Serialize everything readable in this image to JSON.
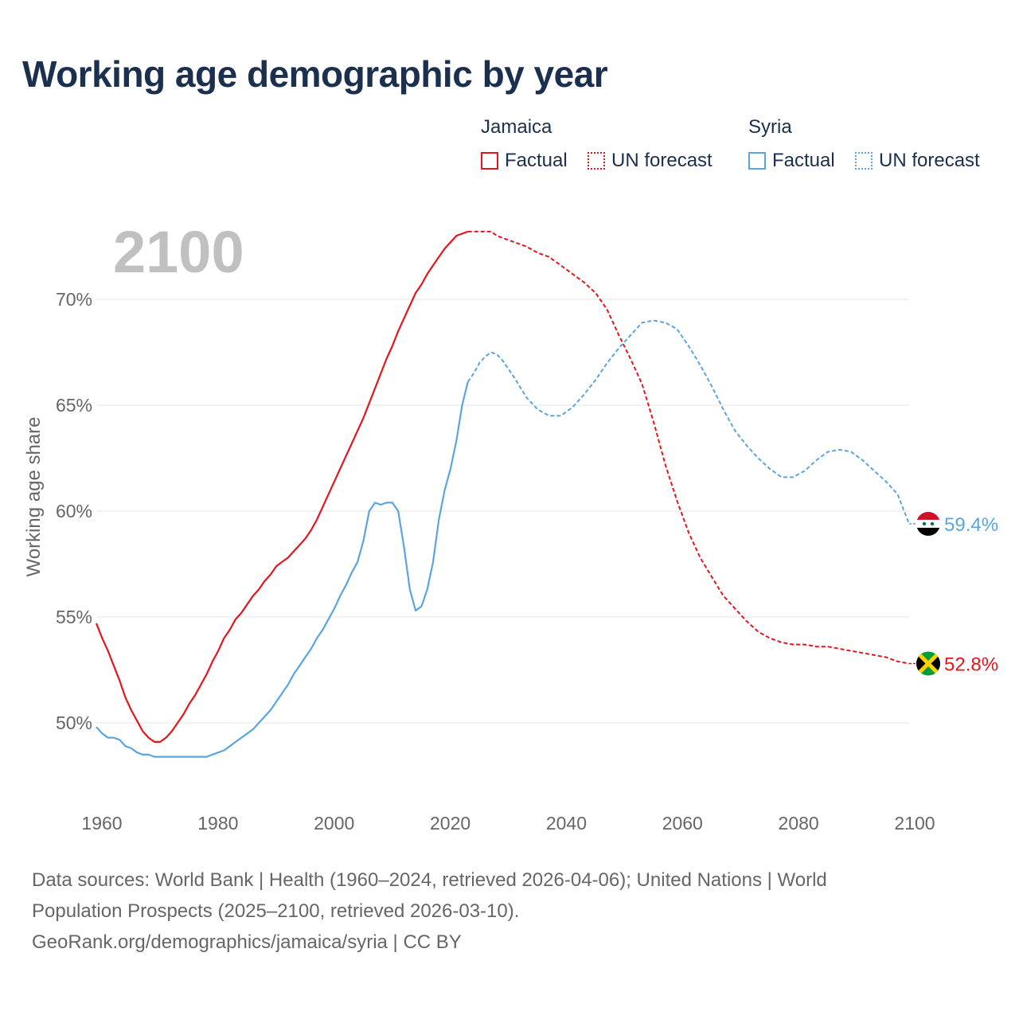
{
  "title": "Working age demographic by year",
  "legend": {
    "groups": [
      {
        "country": "Jamaica",
        "factual": "Factual",
        "forecast": "UN forecast",
        "color": "#e3161d"
      },
      {
        "country": "Syria",
        "factual": "Factual",
        "forecast": "UN forecast",
        "color": "#5aa5e0"
      }
    ]
  },
  "footer": {
    "line1": "Data sources: World Bank | Health (1960–2024, retrieved 2026-04-06); United Nations | World",
    "line2": "Population Prospects (2025–2100, retrieved 2026-03-10).",
    "line3": "GeoRank.org/demographics/jamaica/syria | CC BY"
  },
  "chart_data": {
    "type": "line",
    "title": "Working age demographic by year",
    "year_label": "2100",
    "ylabel": "Working age share",
    "xlabel": "",
    "xlim": [
      1960,
      2100
    ],
    "ylim": [
      46.5,
      73.5
    ],
    "grid": true,
    "x_ticks": [
      1960,
      1980,
      2000,
      2020,
      2040,
      2060,
      2080,
      2100
    ],
    "x_tick_labels": [
      "1960",
      "1980",
      "2000",
      "2020",
      "2040",
      "2060",
      "2080",
      "2100"
    ],
    "y_ticks": [
      50,
      55,
      60,
      65,
      70
    ],
    "y_tick_labels": [
      "50%",
      "55%",
      "60%",
      "65%",
      "70%"
    ],
    "forecast_start": 2024,
    "series": [
      {
        "name": "Jamaica",
        "color": "#e3161d",
        "end_label": "52.8%",
        "points": [
          [
            1960,
            54.7
          ],
          [
            1961,
            54.0
          ],
          [
            1962,
            53.4
          ],
          [
            1963,
            52.7
          ],
          [
            1964,
            52.0
          ],
          [
            1965,
            51.2
          ],
          [
            1966,
            50.6
          ],
          [
            1967,
            50.1
          ],
          [
            1968,
            49.6
          ],
          [
            1969,
            49.3
          ],
          [
            1970,
            49.1
          ],
          [
            1971,
            49.1
          ],
          [
            1972,
            49.3
          ],
          [
            1973,
            49.6
          ],
          [
            1974,
            50.0
          ],
          [
            1975,
            50.4
          ],
          [
            1976,
            50.9
          ],
          [
            1977,
            51.3
          ],
          [
            1978,
            51.8
          ],
          [
            1979,
            52.3
          ],
          [
            1980,
            52.9
          ],
          [
            1981,
            53.4
          ],
          [
            1982,
            54.0
          ],
          [
            1983,
            54.4
          ],
          [
            1984,
            54.9
          ],
          [
            1985,
            55.2
          ],
          [
            1986,
            55.6
          ],
          [
            1987,
            56.0
          ],
          [
            1988,
            56.3
          ],
          [
            1989,
            56.7
          ],
          [
            1990,
            57.0
          ],
          [
            1991,
            57.4
          ],
          [
            1992,
            57.6
          ],
          [
            1993,
            57.8
          ],
          [
            1994,
            58.1
          ],
          [
            1995,
            58.4
          ],
          [
            1996,
            58.7
          ],
          [
            1997,
            59.1
          ],
          [
            1998,
            59.6
          ],
          [
            1999,
            60.2
          ],
          [
            2000,
            60.8
          ],
          [
            2001,
            61.4
          ],
          [
            2002,
            62.0
          ],
          [
            2003,
            62.6
          ],
          [
            2004,
            63.2
          ],
          [
            2005,
            63.8
          ],
          [
            2006,
            64.4
          ],
          [
            2007,
            65.1
          ],
          [
            2008,
            65.8
          ],
          [
            2009,
            66.5
          ],
          [
            2010,
            67.2
          ],
          [
            2011,
            67.8
          ],
          [
            2012,
            68.5
          ],
          [
            2013,
            69.1
          ],
          [
            2014,
            69.7
          ],
          [
            2015,
            70.3
          ],
          [
            2016,
            70.7
          ],
          [
            2017,
            71.2
          ],
          [
            2018,
            71.6
          ],
          [
            2019,
            72.0
          ],
          [
            2020,
            72.4
          ],
          [
            2021,
            72.7
          ],
          [
            2022,
            73.0
          ],
          [
            2023,
            73.1
          ],
          [
            2024,
            73.2
          ],
          [
            2025,
            73.2
          ],
          [
            2026,
            73.2
          ],
          [
            2027,
            73.2
          ],
          [
            2028,
            73.2
          ],
          [
            2029,
            73.0
          ],
          [
            2030,
            72.9
          ],
          [
            2032,
            72.7
          ],
          [
            2034,
            72.5
          ],
          [
            2036,
            72.2
          ],
          [
            2038,
            72.0
          ],
          [
            2040,
            71.6
          ],
          [
            2042,
            71.2
          ],
          [
            2044,
            70.8
          ],
          [
            2046,
            70.3
          ],
          [
            2048,
            69.5
          ],
          [
            2050,
            68.3
          ],
          [
            2052,
            67.2
          ],
          [
            2054,
            66.0
          ],
          [
            2056,
            64.2
          ],
          [
            2058,
            62.2
          ],
          [
            2060,
            60.5
          ],
          [
            2062,
            59.0
          ],
          [
            2064,
            57.8
          ],
          [
            2066,
            56.9
          ],
          [
            2068,
            56.0
          ],
          [
            2070,
            55.4
          ],
          [
            2072,
            54.8
          ],
          [
            2074,
            54.3
          ],
          [
            2076,
            54.0
          ],
          [
            2078,
            53.8
          ],
          [
            2080,
            53.7
          ],
          [
            2082,
            53.7
          ],
          [
            2084,
            53.6
          ],
          [
            2086,
            53.6
          ],
          [
            2088,
            53.5
          ],
          [
            2090,
            53.4
          ],
          [
            2092,
            53.3
          ],
          [
            2094,
            53.2
          ],
          [
            2096,
            53.1
          ],
          [
            2098,
            52.9
          ],
          [
            2100,
            52.8
          ]
        ]
      },
      {
        "name": "Syria",
        "color": "#5aa5e0",
        "end_label": "59.4%",
        "points": [
          [
            1960,
            49.8
          ],
          [
            1961,
            49.5
          ],
          [
            1962,
            49.3
          ],
          [
            1963,
            49.3
          ],
          [
            1964,
            49.2
          ],
          [
            1965,
            48.9
          ],
          [
            1966,
            48.8
          ],
          [
            1967,
            48.6
          ],
          [
            1968,
            48.5
          ],
          [
            1969,
            48.5
          ],
          [
            1970,
            48.4
          ],
          [
            1972,
            48.4
          ],
          [
            1975,
            48.4
          ],
          [
            1978,
            48.4
          ],
          [
            1979,
            48.4
          ],
          [
            1980,
            48.5
          ],
          [
            1981,
            48.6
          ],
          [
            1982,
            48.7
          ],
          [
            1983,
            48.9
          ],
          [
            1984,
            49.1
          ],
          [
            1985,
            49.3
          ],
          [
            1986,
            49.5
          ],
          [
            1987,
            49.7
          ],
          [
            1988,
            50.0
          ],
          [
            1989,
            50.3
          ],
          [
            1990,
            50.6
          ],
          [
            1991,
            51.0
          ],
          [
            1992,
            51.4
          ],
          [
            1993,
            51.8
          ],
          [
            1994,
            52.3
          ],
          [
            1995,
            52.7
          ],
          [
            1996,
            53.1
          ],
          [
            1997,
            53.5
          ],
          [
            1998,
            54.0
          ],
          [
            1999,
            54.4
          ],
          [
            2000,
            54.9
          ],
          [
            2001,
            55.4
          ],
          [
            2002,
            56.0
          ],
          [
            2003,
            56.5
          ],
          [
            2004,
            57.1
          ],
          [
            2005,
            57.6
          ],
          [
            2006,
            58.6
          ],
          [
            2007,
            60.0
          ],
          [
            2008,
            60.4
          ],
          [
            2009,
            60.3
          ],
          [
            2010,
            60.4
          ],
          [
            2011,
            60.4
          ],
          [
            2012,
            60.0
          ],
          [
            2013,
            58.3
          ],
          [
            2014,
            56.3
          ],
          [
            2015,
            55.3
          ],
          [
            2016,
            55.5
          ],
          [
            2017,
            56.3
          ],
          [
            2018,
            57.6
          ],
          [
            2019,
            59.6
          ],
          [
            2020,
            61.0
          ],
          [
            2021,
            62.0
          ],
          [
            2022,
            63.3
          ],
          [
            2023,
            65.0
          ],
          [
            2024,
            66.1
          ],
          [
            2025,
            66.5
          ],
          [
            2026,
            67.0
          ],
          [
            2027,
            67.3
          ],
          [
            2028,
            67.5
          ],
          [
            2029,
            67.4
          ],
          [
            2030,
            67.1
          ],
          [
            2032,
            66.3
          ],
          [
            2034,
            65.4
          ],
          [
            2036,
            64.8
          ],
          [
            2038,
            64.5
          ],
          [
            2040,
            64.5
          ],
          [
            2042,
            64.9
          ],
          [
            2044,
            65.5
          ],
          [
            2046,
            66.2
          ],
          [
            2048,
            67.0
          ],
          [
            2050,
            67.7
          ],
          [
            2052,
            68.3
          ],
          [
            2054,
            68.9
          ],
          [
            2056,
            69.0
          ],
          [
            2058,
            68.9
          ],
          [
            2060,
            68.6
          ],
          [
            2062,
            67.8
          ],
          [
            2064,
            66.9
          ],
          [
            2066,
            65.9
          ],
          [
            2068,
            64.8
          ],
          [
            2070,
            63.8
          ],
          [
            2072,
            63.1
          ],
          [
            2074,
            62.5
          ],
          [
            2076,
            62.0
          ],
          [
            2078,
            61.6
          ],
          [
            2080,
            61.6
          ],
          [
            2082,
            61.9
          ],
          [
            2084,
            62.4
          ],
          [
            2086,
            62.8
          ],
          [
            2088,
            62.9
          ],
          [
            2090,
            62.8
          ],
          [
            2092,
            62.4
          ],
          [
            2094,
            61.9
          ],
          [
            2096,
            61.4
          ],
          [
            2098,
            60.8
          ],
          [
            2100,
            59.4
          ]
        ]
      }
    ]
  }
}
